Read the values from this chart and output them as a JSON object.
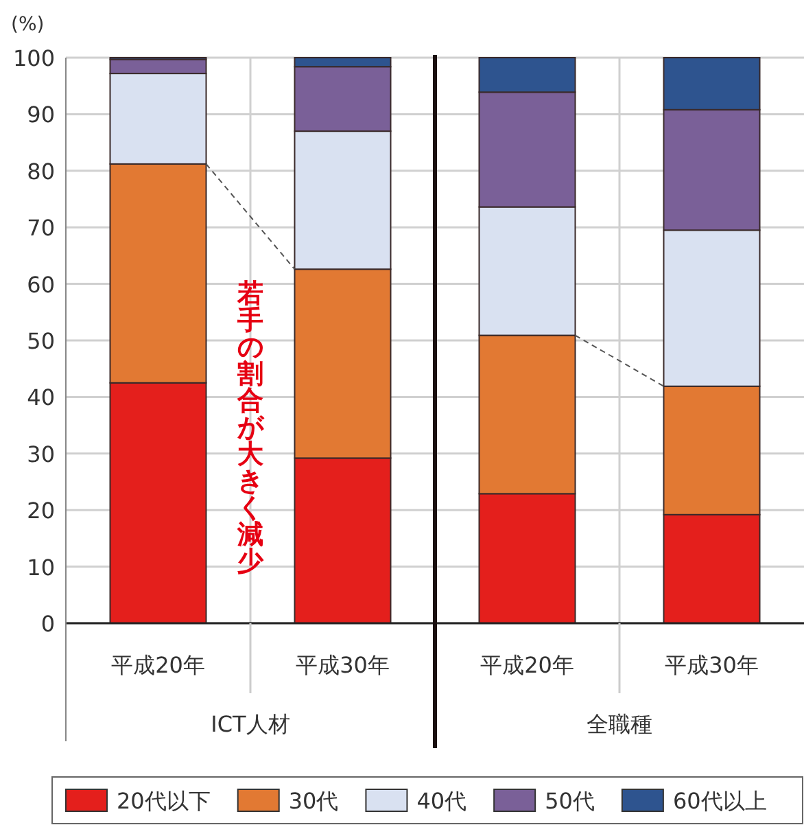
{
  "chart_data": [
    {
      "type": "bar",
      "stacked": true,
      "ylabel": "(%)",
      "xlabel": "ICT人材",
      "categories": [
        "平成20年",
        "平成30年"
      ],
      "series": [
        {
          "name": "20代以下",
          "color": "#e41f1c",
          "values": [
            42.5,
            29.2
          ]
        },
        {
          "name": "30代",
          "color": "#e27933",
          "values": [
            38.7,
            33.4
          ]
        },
        {
          "name": "40代",
          "color": "#d9e1f1",
          "values": [
            16.0,
            24.4
          ]
        },
        {
          "name": "50代",
          "color": "#7a6098",
          "values": [
            2.5,
            11.4
          ]
        },
        {
          "name": "60代以上",
          "color": "#2e548f",
          "values": [
            0.3,
            1.6
          ]
        }
      ],
      "ylim": [
        0,
        100
      ],
      "yticks": [
        0,
        10,
        20,
        30,
        40,
        50,
        60,
        70,
        80,
        90,
        100
      ],
      "grid": true,
      "legend": "bottom",
      "annotations": [
        "若手の割合が大きく減少"
      ]
    },
    {
      "type": "bar",
      "stacked": true,
      "xlabel": "全職種",
      "categories": [
        "平成20年",
        "平成30年"
      ],
      "series": [
        {
          "color": "#e41f1c",
          "values": [
            22.9,
            19.2
          ]
        },
        {
          "color": "#e27933",
          "values": [
            28.0,
            22.7
          ]
        },
        {
          "color": "#d9e1f1",
          "values": [
            22.7,
            27.6
          ]
        },
        {
          "color": "#7a6098",
          "values": [
            20.3,
            21.3
          ]
        },
        {
          "color": "#2e548f",
          "values": [
            6.1,
            9.2
          ]
        }
      ],
      "ylim": [
        0,
        100
      ],
      "yticks": [
        0,
        10,
        20,
        30,
        40,
        50,
        60,
        70,
        80,
        90,
        100
      ],
      "grid": true,
      "tick_labels": "x"
    }
  ]
}
